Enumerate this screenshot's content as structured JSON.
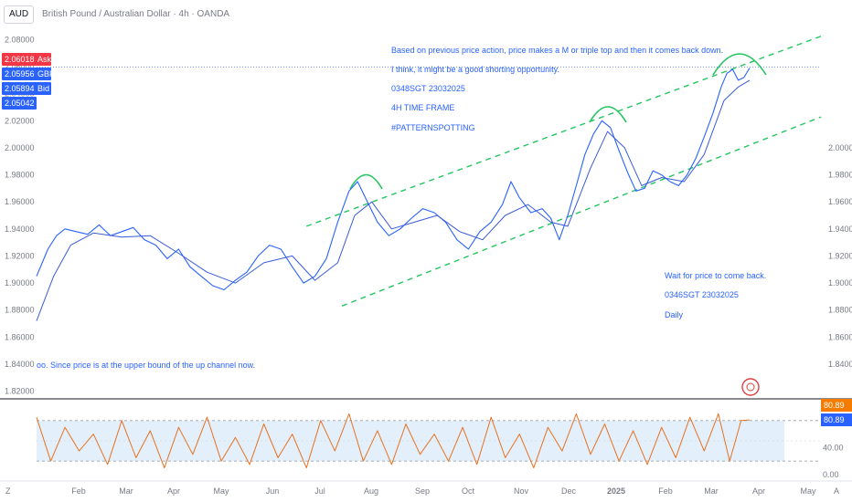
{
  "header": {
    "symbol_box": "AUD",
    "title": "British Pound / Australian Dollar · 4h · OANDA"
  },
  "price_labels": {
    "ask": {
      "value": "2.06018",
      "text": "Ask",
      "color": "#f23645"
    },
    "last": {
      "value": "2.05956",
      "text": "GBPAUD",
      "color": "#2962ff"
    },
    "bid": {
      "value": "2.05894",
      "text": "Bid",
      "color": "#2962ff"
    },
    "other": {
      "value": "2.05042",
      "color": "#2962ff"
    }
  },
  "annotations": {
    "top_lines": [
      "Based on previous price action, price makes a M or triple top and then it comes back down.",
      "I think, it might be a good shorting opportunity.",
      "0348SGT 23032025",
      "4H TIME FRAME",
      "#PATTERNSPOTTING"
    ],
    "right_lines": [
      "Wait for price to come back.",
      "0346SGT 23032025",
      "Daily"
    ],
    "bottom_left": "oo. Since price is at the upper bound of the up channel now."
  },
  "indicator": {
    "value_label": "80.89",
    "label_color": "#f57c00",
    "ticks": [
      "40.00",
      "0.00"
    ]
  },
  "bottom": {
    "left_glyph": "Z",
    "right_glyph": "A"
  },
  "colors": {
    "price_line": "#2962ff",
    "channel": "#22c55e",
    "indicator_line": "#e8701e",
    "indicator_band": "#e3f0fb"
  },
  "chart_data": {
    "type": "line",
    "title": "British Pound / Australian Dollar · 4h · OANDA",
    "xlabel": "",
    "ylabel": "",
    "x_ticks": [
      "Feb",
      "Mar",
      "Apr",
      "May",
      "Jun",
      "Jul",
      "Aug",
      "Sep",
      "Oct",
      "Nov",
      "Dec",
      "2025",
      "Feb",
      "Mar",
      "Apr",
      "May"
    ],
    "y_ticks": [
      "2.08000",
      "2.06000",
      "2.04000",
      "2.02000",
      "2.00000",
      "1.98000",
      "1.96000",
      "1.94000",
      "1.92000",
      "1.90000",
      "1.88000",
      "1.86000",
      "1.84000",
      "1.82000"
    ],
    "ylim": [
      1.815,
      2.085
    ],
    "grid": false,
    "series": [
      {
        "values": [
          [
            0,
            1.905
          ],
          [
            8,
            1.925
          ],
          [
            14,
            1.935
          ],
          [
            20,
            1.94
          ],
          [
            28,
            1.938
          ],
          [
            36,
            1.936
          ],
          [
            44,
            1.943
          ],
          [
            52,
            1.935
          ],
          [
            60,
            1.938
          ],
          [
            68,
            1.941
          ],
          [
            76,
            1.932
          ],
          [
            84,
            1.928
          ],
          [
            92,
            1.918
          ],
          [
            100,
            1.925
          ],
          [
            108,
            1.912
          ],
          [
            116,
            1.905
          ],
          [
            124,
            1.898
          ],
          [
            132,
            1.895
          ],
          [
            140,
            1.902
          ],
          [
            148,
            1.908
          ],
          [
            156,
            1.92
          ],
          [
            164,
            1.928
          ],
          [
            172,
            1.925
          ],
          [
            180,
            1.912
          ],
          [
            188,
            1.9
          ],
          [
            196,
            1.905
          ],
          [
            204,
            1.918
          ],
          [
            212,
            1.945
          ],
          [
            220,
            1.968
          ],
          [
            226,
            1.975
          ],
          [
            232,
            1.962
          ],
          [
            240,
            1.945
          ],
          [
            248,
            1.935
          ],
          [
            256,
            1.94
          ],
          [
            264,
            1.948
          ],
          [
            272,
            1.955
          ],
          [
            280,
            1.952
          ],
          [
            288,
            1.945
          ],
          [
            296,
            1.932
          ],
          [
            304,
            1.925
          ],
          [
            312,
            1.938
          ],
          [
            320,
            1.945
          ],
          [
            328,
            1.958
          ],
          [
            334,
            1.975
          ],
          [
            340,
            1.963
          ],
          [
            348,
            1.952
          ],
          [
            356,
            1.955
          ],
          [
            362,
            1.948
          ],
          [
            368,
            1.932
          ],
          [
            374,
            1.95
          ],
          [
            380,
            1.972
          ],
          [
            386,
            1.995
          ],
          [
            392,
            2.01
          ],
          [
            398,
            2.02
          ],
          [
            404,
            2.015
          ],
          [
            410,
            1.998
          ],
          [
            416,
            1.982
          ],
          [
            422,
            1.968
          ],
          [
            428,
            1.97
          ],
          [
            434,
            1.983
          ],
          [
            440,
            1.98
          ],
          [
            446,
            1.975
          ],
          [
            452,
            1.972
          ],
          [
            458,
            1.98
          ],
          [
            464,
            1.992
          ],
          [
            470,
            2.008
          ],
          [
            476,
            2.025
          ],
          [
            482,
            2.045
          ],
          [
            486,
            2.055
          ],
          [
            490,
            2.058
          ],
          [
            494,
            2.05
          ],
          [
            498,
            2.052
          ],
          [
            502,
            2.059
          ]
        ]
      },
      {
        "values": [
          [
            0,
            1.872
          ],
          [
            12,
            1.905
          ],
          [
            24,
            1.928
          ],
          [
            40,
            1.937
          ],
          [
            60,
            1.934
          ],
          [
            80,
            1.935
          ],
          [
            100,
            1.922
          ],
          [
            120,
            1.908
          ],
          [
            140,
            1.9
          ],
          [
            160,
            1.915
          ],
          [
            180,
            1.92
          ],
          [
            196,
            1.902
          ],
          [
            212,
            1.915
          ],
          [
            224,
            1.95
          ],
          [
            236,
            1.96
          ],
          [
            250,
            1.94
          ],
          [
            266,
            1.945
          ],
          [
            282,
            1.95
          ],
          [
            298,
            1.938
          ],
          [
            314,
            1.932
          ],
          [
            330,
            1.95
          ],
          [
            346,
            1.958
          ],
          [
            362,
            1.945
          ],
          [
            374,
            1.942
          ],
          [
            390,
            1.985
          ],
          [
            402,
            2.012
          ],
          [
            414,
            2.0
          ],
          [
            426,
            1.972
          ],
          [
            440,
            1.978
          ],
          [
            456,
            1.975
          ],
          [
            470,
            1.995
          ],
          [
            484,
            2.035
          ],
          [
            494,
            2.045
          ],
          [
            502,
            2.05
          ]
        ]
      },
      {
        "values": [
          [
            0,
            85
          ],
          [
            10,
            20
          ],
          [
            20,
            70
          ],
          [
            30,
            35
          ],
          [
            40,
            60
          ],
          [
            50,
            15
          ],
          [
            60,
            80
          ],
          [
            70,
            25
          ],
          [
            80,
            65
          ],
          [
            90,
            10
          ],
          [
            100,
            70
          ],
          [
            110,
            30
          ],
          [
            120,
            85
          ],
          [
            130,
            20
          ],
          [
            140,
            55
          ],
          [
            150,
            15
          ],
          [
            160,
            75
          ],
          [
            170,
            25
          ],
          [
            180,
            60
          ],
          [
            190,
            10
          ],
          [
            200,
            80
          ],
          [
            210,
            35
          ],
          [
            220,
            90
          ],
          [
            230,
            20
          ],
          [
            240,
            65
          ],
          [
            250,
            15
          ],
          [
            260,
            75
          ],
          [
            270,
            30
          ],
          [
            280,
            60
          ],
          [
            290,
            20
          ],
          [
            300,
            70
          ],
          [
            310,
            15
          ],
          [
            320,
            85
          ],
          [
            330,
            25
          ],
          [
            340,
            60
          ],
          [
            350,
            10
          ],
          [
            360,
            70
          ],
          [
            370,
            35
          ],
          [
            380,
            90
          ],
          [
            390,
            30
          ],
          [
            400,
            75
          ],
          [
            410,
            20
          ],
          [
            420,
            65
          ],
          [
            430,
            15
          ],
          [
            440,
            70
          ],
          [
            450,
            25
          ],
          [
            460,
            85
          ],
          [
            470,
            35
          ],
          [
            480,
            90
          ],
          [
            488,
            20
          ],
          [
            496,
            80
          ],
          [
            502,
            80.89
          ]
        ]
      }
    ],
    "channel_upper": [
      [
        190,
        1.942
      ],
      [
        502,
        2.063
      ]
    ],
    "channel_lower": [
      [
        215,
        1.883
      ],
      [
        502,
        2.002
      ]
    ]
  }
}
